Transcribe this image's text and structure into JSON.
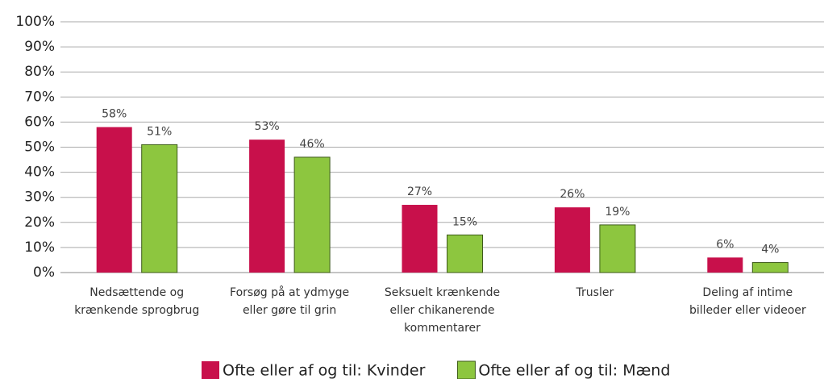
{
  "chart_data": {
    "type": "bar",
    "categories": [
      "Nedsættende og\nkrænkende sprogbrug",
      "Forsøg på at ydmyge\neller gøre til grin",
      "Seksuelt krænkende\neller chikanerende\nkommentarer",
      "Trusler",
      "Deling af intime\nbilleder eller videoer"
    ],
    "series": [
      {
        "name": "Ofte eller af og til: Kvinder",
        "color": "#c8104b",
        "values": [
          58,
          53,
          27,
          26,
          6
        ],
        "value_labels": [
          "58%",
          "53%",
          "27%",
          "26%",
          "6%"
        ]
      },
      {
        "name": "Ofte eller af og til: Mænd",
        "color": "#8dc63f",
        "values": [
          51,
          46,
          15,
          19,
          4
        ],
        "value_labels": [
          "51%",
          "46%",
          "15%",
          "19%",
          "4%"
        ]
      }
    ],
    "ylim": [
      0,
      100
    ],
    "yticks": [
      {
        "value": 0,
        "label": "0%"
      },
      {
        "value": 10,
        "label": "10%"
      },
      {
        "value": 20,
        "label": "20%"
      },
      {
        "value": 30,
        "label": "30%"
      },
      {
        "value": 40,
        "label": "40%"
      },
      {
        "value": 50,
        "label": "50%"
      },
      {
        "value": 60,
        "label": "60%"
      },
      {
        "value": 70,
        "label": "70%"
      },
      {
        "value": 80,
        "label": "80%"
      },
      {
        "value": 90,
        "label": "90%"
      },
      {
        "value": 100,
        "label": "100%"
      }
    ],
    "grid": true,
    "legend": "bottom"
  }
}
